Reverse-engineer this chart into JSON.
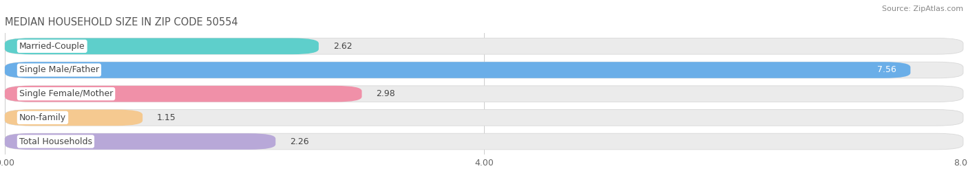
{
  "title": "MEDIAN HOUSEHOLD SIZE IN ZIP CODE 50554",
  "source": "Source: ZipAtlas.com",
  "categories": [
    "Married-Couple",
    "Single Male/Father",
    "Single Female/Mother",
    "Non-family",
    "Total Households"
  ],
  "values": [
    2.62,
    7.56,
    2.98,
    1.15,
    2.26
  ],
  "bar_colors": [
    "#5ecfcb",
    "#6aaee8",
    "#f090a8",
    "#f5c990",
    "#b8a8d8"
  ],
  "bar_bg_colors": [
    "#ebebeb",
    "#ebebeb",
    "#ebebeb",
    "#ebebeb",
    "#ebebeb"
  ],
  "xlim": [
    0,
    8.0
  ],
  "xticks": [
    0.0,
    4.0,
    8.0
  ],
  "xtick_labels": [
    "0.00",
    "4.00",
    "8.00"
  ],
  "title_fontsize": 10.5,
  "source_fontsize": 8,
  "label_fontsize": 9,
  "value_fontsize": 9,
  "background_color": "#ffffff",
  "value_inside_threshold": 7.0
}
